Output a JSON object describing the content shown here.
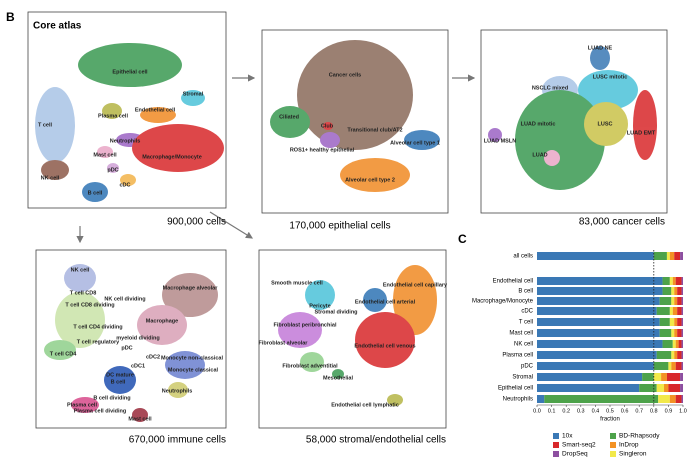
{
  "panel_labels": [
    "B",
    "C"
  ],
  "umaps": [
    {
      "title": "Core atlas",
      "caption": "900,000 cells",
      "labels": [
        "Epithelial cell",
        "Stromal",
        "Endothelial cell",
        "Plasma cell",
        "T cell",
        "Neutrophils",
        "Mast cell",
        "Macrophage/Monocyte",
        "pDC",
        "cDC",
        "NK cell",
        "B cell"
      ]
    },
    {
      "caption": "170,000 epithelial cells",
      "labels": [
        "Cancer cells",
        "Ciliated",
        "Club",
        "Transitional club/AT2",
        "Alveolar cell type 1",
        "ROS1+ healthy epithelial",
        "Alveolar cell type 2"
      ]
    },
    {
      "caption": "83,000 cancer cells",
      "labels": [
        "LUAD NE",
        "LUSC mitotic",
        "NSCLC mixed",
        "LUAD mitotic",
        "LUSC",
        "LUAD EMT",
        "LUAD MSLN",
        "LUAD"
      ]
    },
    {
      "caption": "670,000 immune cells",
      "labels": [
        "NK cell",
        "Macrophage alveolar",
        "T cell CD8",
        "NK cell dividing",
        "T cell CD8 dividing",
        "Macrophage",
        "T cell CD4 dividing",
        "myeloid dividing",
        "T cell regulatory",
        "pDC",
        "cDC2",
        "Monocyte non-classical",
        "T cell CD4",
        "cDC1",
        "Monocyte classical",
        "DC mature",
        "B cell",
        "Neutrophils",
        "B cell dividing",
        "Plasma cell",
        "Plasma cell dividing",
        "Mast cell"
      ]
    },
    {
      "caption": "58,000 stromal/endothelial cells",
      "labels": [
        "Endothelial cell capillary",
        "Smooth muscle cell",
        "Endothelial cell arterial",
        "Pericyte",
        "Stromal dividing",
        "Fibroblast peribronchial",
        "Fibroblast alveolar",
        "Endothelial cell venous",
        "Fibroblast adventitial",
        "Mesothelial",
        "Endothelial cell lymphatic"
      ]
    }
  ],
  "chart_data": {
    "type": "stacked-barh",
    "x_label": "fraction",
    "categories": [
      "all cells",
      "Endothelial cell",
      "B cell",
      "Macrophage/Monocyte",
      "cDC",
      "T cell",
      "Mast cell",
      "NK cell",
      "Plasma cell",
      "pDC",
      "Stromal",
      "Epithelial cell",
      "Neutrophils"
    ],
    "series": [
      {
        "name": "10x",
        "color": "#3a78b5",
        "values": [
          0.8,
          0.86,
          0.86,
          0.84,
          0.82,
          0.84,
          0.84,
          0.86,
          0.82,
          0.8,
          0.72,
          0.7,
          0.05
        ]
      },
      {
        "name": "BD-Rhapsody",
        "color": "#4da24a",
        "values": [
          0.09,
          0.05,
          0.06,
          0.08,
          0.09,
          0.07,
          0.08,
          0.07,
          0.1,
          0.1,
          0.08,
          0.12,
          0.78
        ]
      },
      {
        "name": "Singleron",
        "color": "#f2e94a",
        "values": [
          0.02,
          0.02,
          0.02,
          0.02,
          0.02,
          0.03,
          0.02,
          0.02,
          0.02,
          0.02,
          0.05,
          0.05,
          0.08
        ]
      },
      {
        "name": "InDrop",
        "color": "#f39224",
        "values": [
          0.03,
          0.02,
          0.02,
          0.02,
          0.03,
          0.02,
          0.02,
          0.02,
          0.02,
          0.03,
          0.04,
          0.03,
          0.04
        ]
      },
      {
        "name": "Smart-seq2",
        "color": "#d8282a",
        "values": [
          0.04,
          0.04,
          0.03,
          0.03,
          0.03,
          0.03,
          0.03,
          0.02,
          0.03,
          0.04,
          0.09,
          0.08,
          0.04
        ]
      },
      {
        "name": "DropSeq",
        "color": "#8d4fa0",
        "values": [
          0.02,
          0.01,
          0.01,
          0.01,
          0.01,
          0.01,
          0.01,
          0.01,
          0.01,
          0.01,
          0.02,
          0.02,
          0.01
        ]
      }
    ],
    "xlim": [
      0,
      1
    ],
    "xticks": [
      {
        "value": 0,
        "label": "0.0"
      },
      0.1,
      0.2,
      0.3,
      0.4,
      0.5,
      0.6,
      0.7,
      0.8,
      0.9,
      {
        "value": 1,
        "label": "1.0"
      }
    ],
    "vline": 0.8
  }
}
